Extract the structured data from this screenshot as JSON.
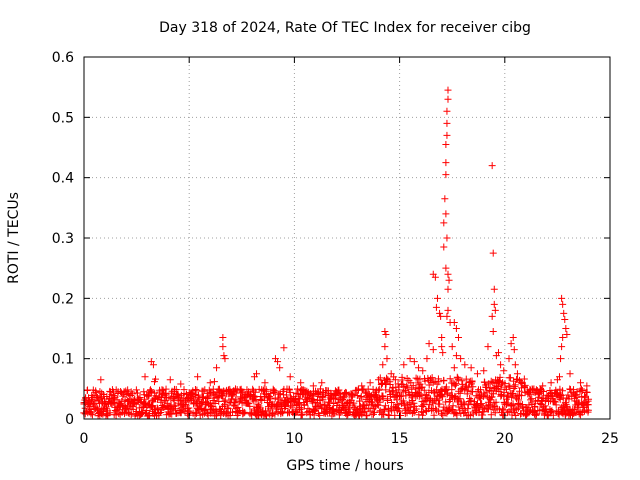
{
  "chart_data": {
    "type": "scatter",
    "title": "Day 318 of 2024, Rate Of TEC Index for receiver cibg",
    "xlabel": "GPS time / hours",
    "ylabel": "ROTI / TECUs",
    "xlim": [
      0,
      25
    ],
    "ylim": [
      0,
      0.6
    ],
    "xticks": [
      0,
      5,
      10,
      15,
      20,
      25
    ],
    "xtick_labels": [
      "0",
      "5",
      "10",
      "15",
      "20",
      "25"
    ],
    "yticks": [
      0,
      0.1,
      0.2,
      0.3,
      0.4,
      0.5,
      0.6
    ],
    "ytick_labels": [
      "0",
      "0.1",
      "0.2",
      "0.3",
      "0.4",
      "0.5",
      "0.6"
    ],
    "grid": true,
    "marker": "+",
    "marker_color": "#ff0000",
    "series": [
      {
        "name": "ROTI",
        "points": [
          [
            0.8,
            0.065
          ],
          [
            1.9,
            0.045
          ],
          [
            3.2,
            0.095
          ],
          [
            3.3,
            0.09
          ],
          [
            3.4,
            0.066
          ],
          [
            3.35,
            0.062
          ],
          [
            2.9,
            0.07
          ],
          [
            4.1,
            0.065
          ],
          [
            4.6,
            0.058
          ],
          [
            5.4,
            0.07
          ],
          [
            6.0,
            0.06
          ],
          [
            6.2,
            0.062
          ],
          [
            6.6,
            0.135
          ],
          [
            6.6,
            0.12
          ],
          [
            6.65,
            0.105
          ],
          [
            6.7,
            0.1
          ],
          [
            6.3,
            0.085
          ],
          [
            7.2,
            0.05
          ],
          [
            7.5,
            0.045
          ],
          [
            8.2,
            0.075
          ],
          [
            8.1,
            0.07
          ],
          [
            8.6,
            0.06
          ],
          [
            9.1,
            0.1
          ],
          [
            9.2,
            0.095
          ],
          [
            9.5,
            0.118
          ],
          [
            9.3,
            0.085
          ],
          [
            9.8,
            0.07
          ],
          [
            10.3,
            0.06
          ],
          [
            10.9,
            0.055
          ],
          [
            11.3,
            0.06
          ],
          [
            12.0,
            0.045
          ],
          [
            12.6,
            0.04
          ],
          [
            13.2,
            0.055
          ],
          [
            13.6,
            0.06
          ],
          [
            14.0,
            0.065
          ],
          [
            14.3,
            0.145
          ],
          [
            14.35,
            0.14
          ],
          [
            14.3,
            0.12
          ],
          [
            14.4,
            0.1
          ],
          [
            14.2,
            0.09
          ],
          [
            14.6,
            0.075
          ],
          [
            14.8,
            0.065
          ],
          [
            15.2,
            0.09
          ],
          [
            15.5,
            0.1
          ],
          [
            15.7,
            0.095
          ],
          [
            15.9,
            0.085
          ],
          [
            16.1,
            0.08
          ],
          [
            16.3,
            0.1
          ],
          [
            16.4,
            0.125
          ],
          [
            16.6,
            0.115
          ],
          [
            16.6,
            0.24
          ],
          [
            16.7,
            0.235
          ],
          [
            16.75,
            0.185
          ],
          [
            16.8,
            0.2
          ],
          [
            16.9,
            0.175
          ],
          [
            16.95,
            0.17
          ],
          [
            17.0,
            0.135
          ],
          [
            17.0,
            0.12
          ],
          [
            17.05,
            0.11
          ],
          [
            17.1,
            0.285
          ],
          [
            17.1,
            0.325
          ],
          [
            17.15,
            0.365
          ],
          [
            17.2,
            0.405
          ],
          [
            17.2,
            0.425
          ],
          [
            17.2,
            0.455
          ],
          [
            17.25,
            0.47
          ],
          [
            17.25,
            0.49
          ],
          [
            17.25,
            0.51
          ],
          [
            17.3,
            0.53
          ],
          [
            17.3,
            0.545
          ],
          [
            17.2,
            0.34
          ],
          [
            17.25,
            0.3
          ],
          [
            17.2,
            0.25
          ],
          [
            17.3,
            0.24
          ],
          [
            17.35,
            0.23
          ],
          [
            17.3,
            0.215
          ],
          [
            17.3,
            0.18
          ],
          [
            17.25,
            0.17
          ],
          [
            17.4,
            0.16
          ],
          [
            17.5,
            0.12
          ],
          [
            17.6,
            0.16
          ],
          [
            17.7,
            0.15
          ],
          [
            17.8,
            0.135
          ],
          [
            17.7,
            0.105
          ],
          [
            17.6,
            0.085
          ],
          [
            17.9,
            0.1
          ],
          [
            18.1,
            0.09
          ],
          [
            18.4,
            0.085
          ],
          [
            18.7,
            0.075
          ],
          [
            19.0,
            0.08
          ],
          [
            19.2,
            0.12
          ],
          [
            19.4,
            0.42
          ],
          [
            19.45,
            0.275
          ],
          [
            19.5,
            0.215
          ],
          [
            19.5,
            0.19
          ],
          [
            19.55,
            0.18
          ],
          [
            19.4,
            0.17
          ],
          [
            19.45,
            0.145
          ],
          [
            19.6,
            0.105
          ],
          [
            19.7,
            0.11
          ],
          [
            19.8,
            0.09
          ],
          [
            19.95,
            0.08
          ],
          [
            20.2,
            0.1
          ],
          [
            20.3,
            0.125
          ],
          [
            20.4,
            0.135
          ],
          [
            20.45,
            0.115
          ],
          [
            20.5,
            0.09
          ],
          [
            20.6,
            0.075
          ],
          [
            20.8,
            0.06
          ],
          [
            21.3,
            0.05
          ],
          [
            21.8,
            0.055
          ],
          [
            22.2,
            0.06
          ],
          [
            22.5,
            0.065
          ],
          [
            22.6,
            0.07
          ],
          [
            22.65,
            0.1
          ],
          [
            22.7,
            0.12
          ],
          [
            22.75,
            0.135
          ],
          [
            22.7,
            0.2
          ],
          [
            22.75,
            0.19
          ],
          [
            22.8,
            0.175
          ],
          [
            22.85,
            0.165
          ],
          [
            22.9,
            0.15
          ],
          [
            22.95,
            0.14
          ],
          [
            23.1,
            0.075
          ],
          [
            23.6,
            0.06
          ],
          [
            23.9,
            0.055
          ]
        ],
        "baseline_band": {
          "x_range": [
            0,
            24
          ],
          "y_range": [
            0.005,
            0.05
          ],
          "note": "dense cluster of points at low ROTI across the full day"
        }
      }
    ]
  }
}
